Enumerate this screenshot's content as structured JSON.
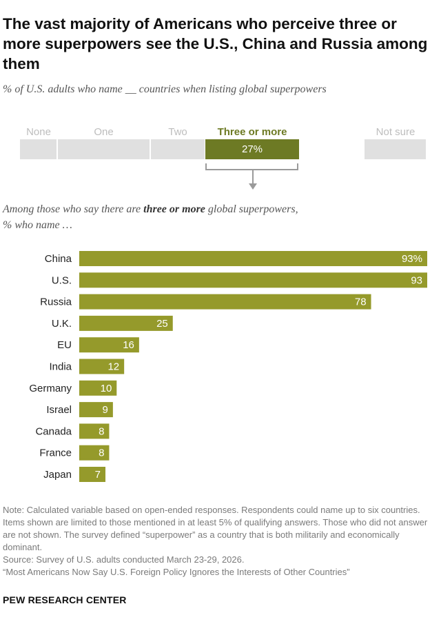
{
  "title": "The vast majority of Americans who perceive three or more superpowers see the U.S., China and Russia among them",
  "subtitle": "% of U.S. adults who name __ countries when listing global superpowers",
  "categories": {
    "none": "None",
    "one": "One",
    "two": "Two",
    "three_or_more": "Three or more",
    "three_or_more_value": "27%",
    "not_sure": "Not sure"
  },
  "lead": {
    "part1": "Among those who say there are ",
    "emphasis": "three or more",
    "part2": " global superpowers,",
    "line2": "% who name …"
  },
  "colors": {
    "bar": "#959a2b",
    "highlight": "#6d7a24",
    "inactive": "#e0e0e0"
  },
  "chart_data": {
    "type": "bar",
    "orientation": "horizontal",
    "categories": [
      "China",
      "U.S.",
      "Russia",
      "U.K.",
      "EU",
      "India",
      "Germany",
      "Israel",
      "Canada",
      "France",
      "Japan"
    ],
    "values": [
      93,
      93,
      78,
      25,
      16,
      12,
      10,
      9,
      8,
      8,
      7
    ],
    "value_labels": [
      "93%",
      "93",
      "78",
      "25",
      "16",
      "12",
      "10",
      "9",
      "8",
      "8",
      "7"
    ],
    "xlim": [
      0,
      100
    ]
  },
  "notes": {
    "note": "Note: Calculated variable based on open-ended responses. Respondents could name up to six countries. Items shown are limited to those mentioned in at least 5% of qualifying answers. Those who did not answer are not shown. The survey defined “superpower” as a country that is both militarily and economically dominant.",
    "source": "Source: Survey of U.S. adults conducted March 23-29, 2026.",
    "report": "“Most Americans Now Say U.S. Foreign Policy Ignores the Interests of Other Countries”"
  },
  "brand": "PEW RESEARCH CENTER"
}
